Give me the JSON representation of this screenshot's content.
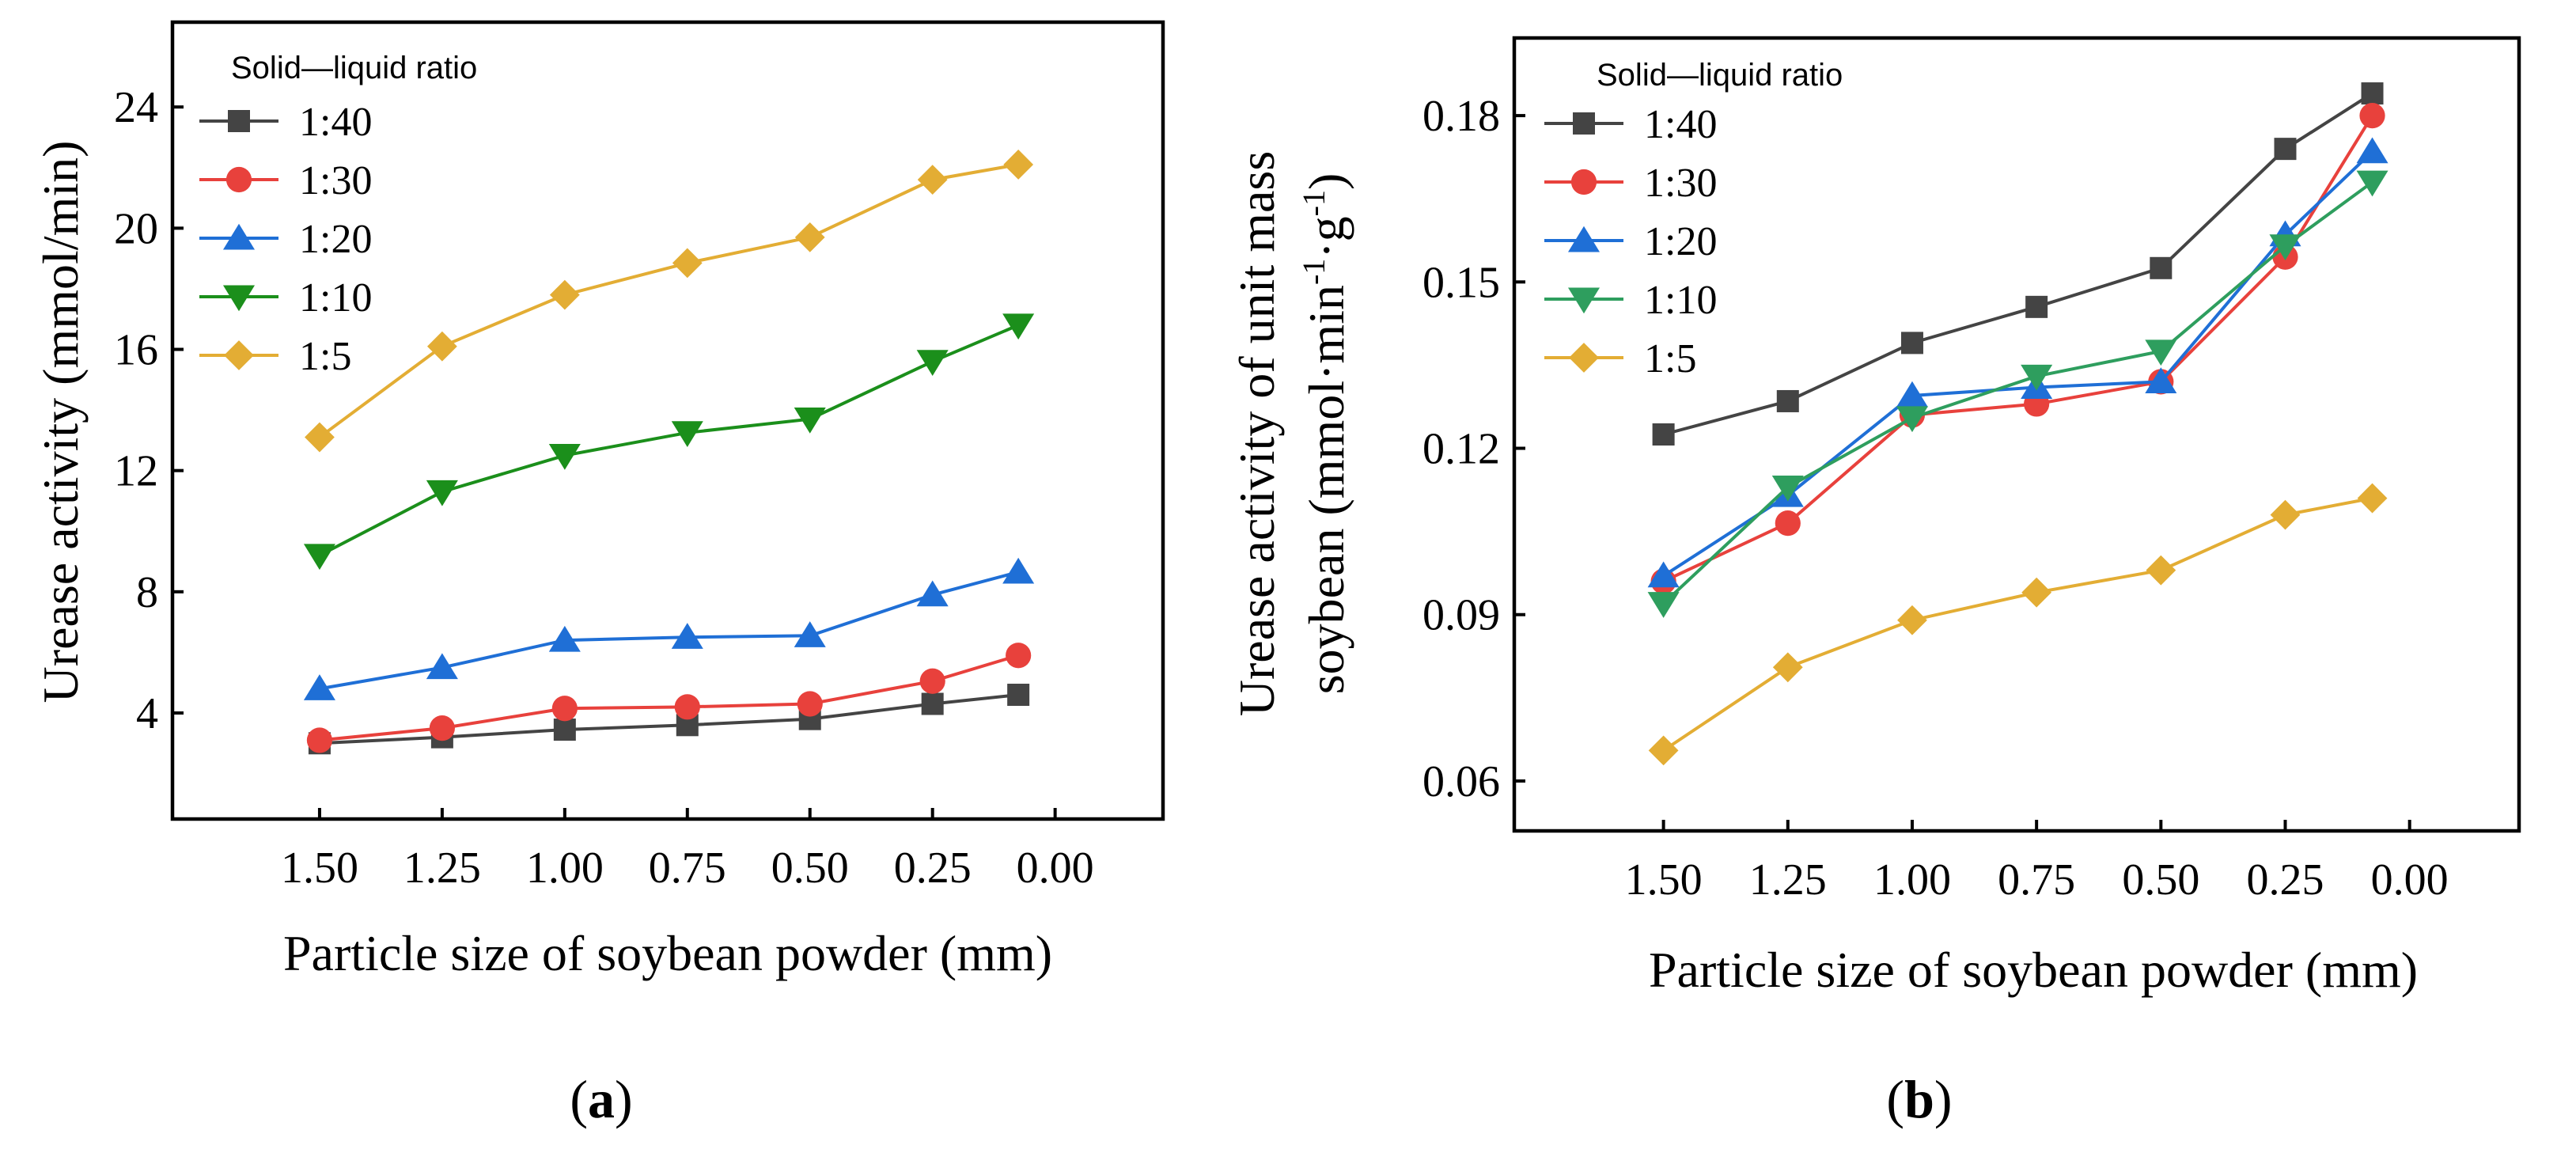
{
  "chart_data": [
    {
      "type": "line",
      "panel_label": {
        "open": "(",
        "letter": "a",
        "close": ")"
      },
      "xlabel": "Particle size of soybean powder (mm)",
      "ylabel": "Urease activity  (mmol/min)",
      "x_reversed": true,
      "xlim": [
        1.8,
        -0.22
      ],
      "ylim": [
        0.5,
        26.8
      ],
      "x_ticks": [
        1.5,
        1.25,
        1.0,
        0.75,
        0.5,
        0.25,
        0.0
      ],
      "x_tick_labels": [
        "1.50",
        "1.25",
        "1.00",
        "0.75",
        "0.50",
        "0.25",
        "0.00"
      ],
      "y_ticks": [
        4,
        8,
        12,
        16,
        20,
        24
      ],
      "y_tick_labels": [
        "4",
        "8",
        "12",
        "16",
        "20",
        "24"
      ],
      "legend_title": "Solid—liquid ratio",
      "legend_position": "top-left",
      "x": [
        1.5,
        1.25,
        1.0,
        0.75,
        0.5,
        0.25,
        0.075
      ],
      "series": [
        {
          "name": "1:40",
          "color": "#444444",
          "marker": "square",
          "values": [
            3.0,
            3.2,
            3.45,
            3.6,
            3.8,
            4.3,
            4.6
          ]
        },
        {
          "name": "1:30",
          "color": "#e8413c",
          "marker": "circle",
          "values": [
            3.1,
            3.5,
            4.15,
            4.2,
            4.3,
            5.05,
            5.9
          ]
        },
        {
          "name": "1:20",
          "color": "#1f6fd6",
          "marker": "triangle-up",
          "values": [
            4.8,
            5.5,
            6.4,
            6.5,
            6.55,
            7.9,
            8.65
          ]
        },
        {
          "name": "1:10",
          "color": "#1b8f1b",
          "marker": "triangle-down",
          "values": [
            9.2,
            11.3,
            12.5,
            13.25,
            13.7,
            15.6,
            16.8
          ]
        },
        {
          "name": "1:5",
          "color": "#e3ad34",
          "marker": "diamond",
          "values": [
            13.1,
            16.1,
            17.8,
            18.85,
            19.7,
            21.6,
            22.1
          ]
        }
      ]
    },
    {
      "type": "line",
      "panel_label": {
        "open": "(",
        "letter": "b",
        "close": ")"
      },
      "xlabel": "Particle size of soybean powder (mm)",
      "ylabel_line1": "Urease activity of unit mass",
      "ylabel_line2_base": "soybean  (mmol·min",
      "ylabel_sup1": "-1",
      "ylabel_mid": "·g",
      "ylabel_sup2": "-1",
      "ylabel_end": ")",
      "x_reversed": true,
      "xlim": [
        1.8,
        -0.22
      ],
      "ylim": [
        0.051,
        0.194
      ],
      "x_ticks": [
        1.5,
        1.25,
        1.0,
        0.75,
        0.5,
        0.25,
        0.0
      ],
      "x_tick_labels": [
        "1.50",
        "1.25",
        "1.00",
        "0.75",
        "0.50",
        "0.25",
        "0.00"
      ],
      "y_ticks": [
        0.06,
        0.09,
        0.12,
        0.15,
        0.18
      ],
      "y_tick_labels": [
        "0.06",
        "0.09",
        "0.12",
        "0.15",
        "0.18"
      ],
      "legend_title": "Solid—liquid ratio",
      "legend_position": "top-left",
      "x": [
        1.5,
        1.25,
        1.0,
        0.75,
        0.5,
        0.25,
        0.075
      ],
      "series": [
        {
          "name": "1:40",
          "color": "#444444",
          "marker": "square",
          "values": [
            0.1225,
            0.1285,
            0.139,
            0.1455,
            0.1525,
            0.174,
            0.184
          ]
        },
        {
          "name": "1:30",
          "color": "#e8413c",
          "marker": "circle",
          "values": [
            0.096,
            0.1065,
            0.126,
            0.128,
            0.132,
            0.1545,
            0.18
          ]
        },
        {
          "name": "1:20",
          "color": "#1f6fd6",
          "marker": "triangle-up",
          "values": [
            0.097,
            0.1115,
            0.1295,
            0.131,
            0.132,
            0.1585,
            0.1735
          ]
        },
        {
          "name": "1:10",
          "color": "#2e9e5e",
          "marker": "triangle-down",
          "values": [
            0.092,
            0.113,
            0.1255,
            0.133,
            0.1375,
            0.1565,
            0.168
          ]
        },
        {
          "name": "1:5",
          "color": "#e3ad34",
          "marker": "diamond",
          "values": [
            0.0655,
            0.0805,
            0.089,
            0.094,
            0.098,
            0.108,
            0.111
          ]
        }
      ]
    }
  ]
}
